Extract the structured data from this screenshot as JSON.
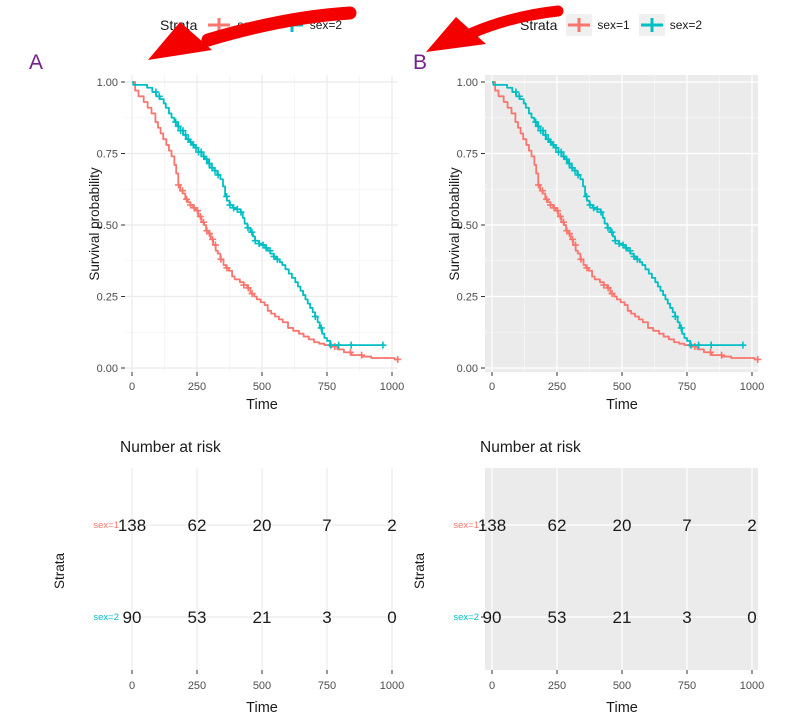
{
  "panels": [
    {
      "label": "A",
      "theme": "white"
    },
    {
      "label": "B",
      "theme": "gray"
    }
  ],
  "legend": {
    "title": "Strata",
    "items": [
      {
        "label": "sex=1",
        "color": "#F8766D"
      },
      {
        "label": "sex=2",
        "color": "#00BFC4"
      }
    ]
  },
  "annotations": {
    "arrow_color": "#f40000",
    "panel_label_color": "#74208E"
  },
  "risk_table": {
    "title": "Number at risk",
    "ylabel": "Strata",
    "xlabel": "Time",
    "xticks": [
      0,
      250,
      500,
      750,
      1000
    ],
    "rows": [
      {
        "label": "sex=1",
        "color": "#F8766D",
        "values": [
          138,
          62,
          20,
          7,
          2
        ]
      },
      {
        "label": "sex=2",
        "color": "#00BFC4",
        "values": [
          90,
          53,
          21,
          3,
          0
        ]
      }
    ]
  },
  "chart_data": {
    "type": "line",
    "subtype": "kaplan-meier-step",
    "title": "",
    "xlabel": "Time",
    "ylabel": "Survival probability",
    "xlim": [
      -27,
      1023
    ],
    "ylim": [
      0,
      1
    ],
    "xticks": [
      0,
      250,
      500,
      750,
      1000
    ],
    "yticks": [
      0,
      0.25,
      0.5,
      0.75,
      1
    ],
    "ytick_labels": [
      "0.00",
      "0.25",
      "0.50",
      "0.75",
      "1.00"
    ],
    "grid": true,
    "legend_position": "top",
    "series": [
      {
        "name": "sex=1",
        "color": "#F8766D",
        "steps": [
          [
            0,
            1.0
          ],
          [
            12,
            0.97
          ],
          [
            25,
            0.95
          ],
          [
            45,
            0.93
          ],
          [
            60,
            0.91
          ],
          [
            75,
            0.89
          ],
          [
            90,
            0.86
          ],
          [
            100,
            0.84
          ],
          [
            110,
            0.82
          ],
          [
            120,
            0.8
          ],
          [
            132,
            0.78
          ],
          [
            142,
            0.76
          ],
          [
            152,
            0.74
          ],
          [
            163,
            0.71
          ],
          [
            170,
            0.68
          ],
          [
            178,
            0.64
          ],
          [
            185,
            0.62
          ],
          [
            195,
            0.61
          ],
          [
            205,
            0.59
          ],
          [
            215,
            0.58
          ],
          [
            225,
            0.57
          ],
          [
            235,
            0.56
          ],
          [
            245,
            0.55
          ],
          [
            255,
            0.53
          ],
          [
            267,
            0.51
          ],
          [
            277,
            0.5
          ],
          [
            285,
            0.48
          ],
          [
            295,
            0.47
          ],
          [
            303,
            0.45
          ],
          [
            312,
            0.43
          ],
          [
            322,
            0.41
          ],
          [
            330,
            0.4
          ],
          [
            340,
            0.38
          ],
          [
            352,
            0.36
          ],
          [
            362,
            0.35
          ],
          [
            372,
            0.34
          ],
          [
            385,
            0.32
          ],
          [
            395,
            0.31
          ],
          [
            415,
            0.3
          ],
          [
            430,
            0.29
          ],
          [
            443,
            0.28
          ],
          [
            455,
            0.26
          ],
          [
            470,
            0.25
          ],
          [
            480,
            0.24
          ],
          [
            495,
            0.23
          ],
          [
            510,
            0.22
          ],
          [
            522,
            0.2
          ],
          [
            535,
            0.19
          ],
          [
            550,
            0.18
          ],
          [
            565,
            0.17
          ],
          [
            580,
            0.16
          ],
          [
            600,
            0.14
          ],
          [
            620,
            0.13
          ],
          [
            642,
            0.12
          ],
          [
            660,
            0.11
          ],
          [
            680,
            0.1
          ],
          [
            700,
            0.09
          ],
          [
            720,
            0.085
          ],
          [
            740,
            0.08
          ],
          [
            760,
            0.075
          ],
          [
            790,
            0.065
          ],
          [
            815,
            0.055
          ],
          [
            845,
            0.045
          ],
          [
            885,
            0.04
          ],
          [
            920,
            0.035
          ],
          [
            1010,
            0.03
          ],
          [
            1022,
            0.03
          ]
        ],
        "censor_times": [
          179,
          194,
          210,
          225,
          239,
          252,
          263,
          275,
          288,
          298,
          310,
          321,
          342,
          365,
          430,
          447,
          462,
          780,
          840,
          883,
          1022
        ]
      },
      {
        "name": "sex=2",
        "color": "#00BFC4",
        "steps": [
          [
            0,
            1.0
          ],
          [
            5,
            0.99
          ],
          [
            58,
            0.98
          ],
          [
            78,
            0.965
          ],
          [
            93,
            0.95
          ],
          [
            107,
            0.94
          ],
          [
            122,
            0.925
          ],
          [
            130,
            0.91
          ],
          [
            142,
            0.89
          ],
          [
            152,
            0.875
          ],
          [
            163,
            0.86
          ],
          [
            175,
            0.845
          ],
          [
            186,
            0.83
          ],
          [
            197,
            0.815
          ],
          [
            208,
            0.8
          ],
          [
            220,
            0.79
          ],
          [
            232,
            0.78
          ],
          [
            243,
            0.77
          ],
          [
            255,
            0.755
          ],
          [
            268,
            0.74
          ],
          [
            280,
            0.73
          ],
          [
            292,
            0.715
          ],
          [
            305,
            0.7
          ],
          [
            317,
            0.69
          ],
          [
            328,
            0.675
          ],
          [
            340,
            0.66
          ],
          [
            350,
            0.635
          ],
          [
            358,
            0.6
          ],
          [
            365,
            0.585
          ],
          [
            375,
            0.57
          ],
          [
            388,
            0.56
          ],
          [
            400,
            0.555
          ],
          [
            418,
            0.545
          ],
          [
            426,
            0.525
          ],
          [
            433,
            0.505
          ],
          [
            444,
            0.49
          ],
          [
            455,
            0.475
          ],
          [
            465,
            0.46
          ],
          [
            473,
            0.445
          ],
          [
            488,
            0.435
          ],
          [
            500,
            0.43
          ],
          [
            512,
            0.42
          ],
          [
            522,
            0.41
          ],
          [
            532,
            0.4
          ],
          [
            545,
            0.39
          ],
          [
            552,
            0.385
          ],
          [
            558,
            0.38
          ],
          [
            568,
            0.37
          ],
          [
            578,
            0.36
          ],
          [
            590,
            0.345
          ],
          [
            603,
            0.33
          ],
          [
            615,
            0.315
          ],
          [
            628,
            0.3
          ],
          [
            638,
            0.285
          ],
          [
            648,
            0.27
          ],
          [
            658,
            0.255
          ],
          [
            667,
            0.24
          ],
          [
            676,
            0.225
          ],
          [
            685,
            0.21
          ],
          [
            695,
            0.195
          ],
          [
            704,
            0.18
          ],
          [
            714,
            0.16
          ],
          [
            722,
            0.14
          ],
          [
            731,
            0.12
          ],
          [
            740,
            0.105
          ],
          [
            750,
            0.095
          ],
          [
            762,
            0.08
          ],
          [
            965,
            0.08
          ]
        ],
        "censor_times": [
          92,
          105,
          168,
          178,
          187,
          196,
          206,
          216,
          226,
          236,
          246,
          256,
          266,
          276,
          287,
          297,
          308,
          319,
          331,
          364,
          377,
          391,
          405,
          419,
          446,
          461,
          474,
          489,
          504,
          516,
          531,
          546,
          559,
          705,
          728,
          765,
          795,
          843,
          965
        ]
      }
    ]
  }
}
